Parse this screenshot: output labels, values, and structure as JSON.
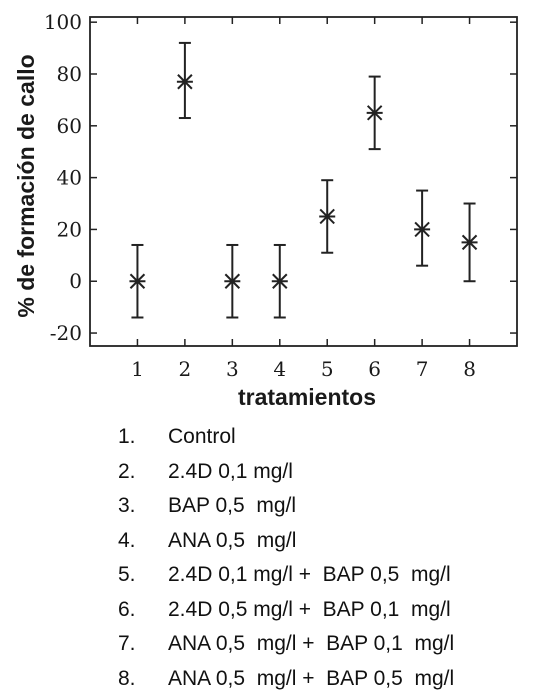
{
  "chart_data": {
    "type": "scatter",
    "xlabel": "tratamientos",
    "ylabel": "% de formación de callo",
    "xlim": [
      0,
      9
    ],
    "ylim": [
      -25,
      102
    ],
    "x_ticks": [
      1,
      2,
      3,
      4,
      5,
      6,
      7,
      8
    ],
    "y_ticks": [
      -20,
      0,
      20,
      40,
      60,
      80,
      100
    ],
    "grid": false,
    "marker": "asterisk",
    "error_bars": true,
    "points": [
      {
        "x": 1,
        "y": 0,
        "low": -14,
        "high": 14
      },
      {
        "x": 2,
        "y": 77,
        "low": 63,
        "high": 92
      },
      {
        "x": 3,
        "y": 0,
        "low": -14,
        "high": 14
      },
      {
        "x": 4,
        "y": 0,
        "low": -14,
        "high": 14
      },
      {
        "x": 5,
        "y": 25,
        "low": 11,
        "high": 39
      },
      {
        "x": 6,
        "y": 65,
        "low": 51,
        "high": 79
      },
      {
        "x": 7,
        "y": 20,
        "low": 6,
        "high": 35
      },
      {
        "x": 8,
        "y": 15,
        "low": 0,
        "high": 30
      }
    ]
  },
  "legend": [
    {
      "num": "1.",
      "text": "Control"
    },
    {
      "num": "2.",
      "text": "2.4D 0,1 mg/l"
    },
    {
      "num": "3.",
      "text": "BAP 0,5  mg/l"
    },
    {
      "num": "4.",
      "text": "ANA 0,5  mg/l"
    },
    {
      "num": "5.",
      "text": "2.4D 0,1 mg/l +  BAP 0,5  mg/l"
    },
    {
      "num": "6.",
      "text": "2.4D 0,5 mg/l +  BAP 0,1  mg/l"
    },
    {
      "num": "7.",
      "text": "ANA 0,5  mg/l +  BAP 0,1  mg/l"
    },
    {
      "num": "8.",
      "text": "ANA 0,5  mg/l +  BAP 0,5  mg/l"
    }
  ]
}
